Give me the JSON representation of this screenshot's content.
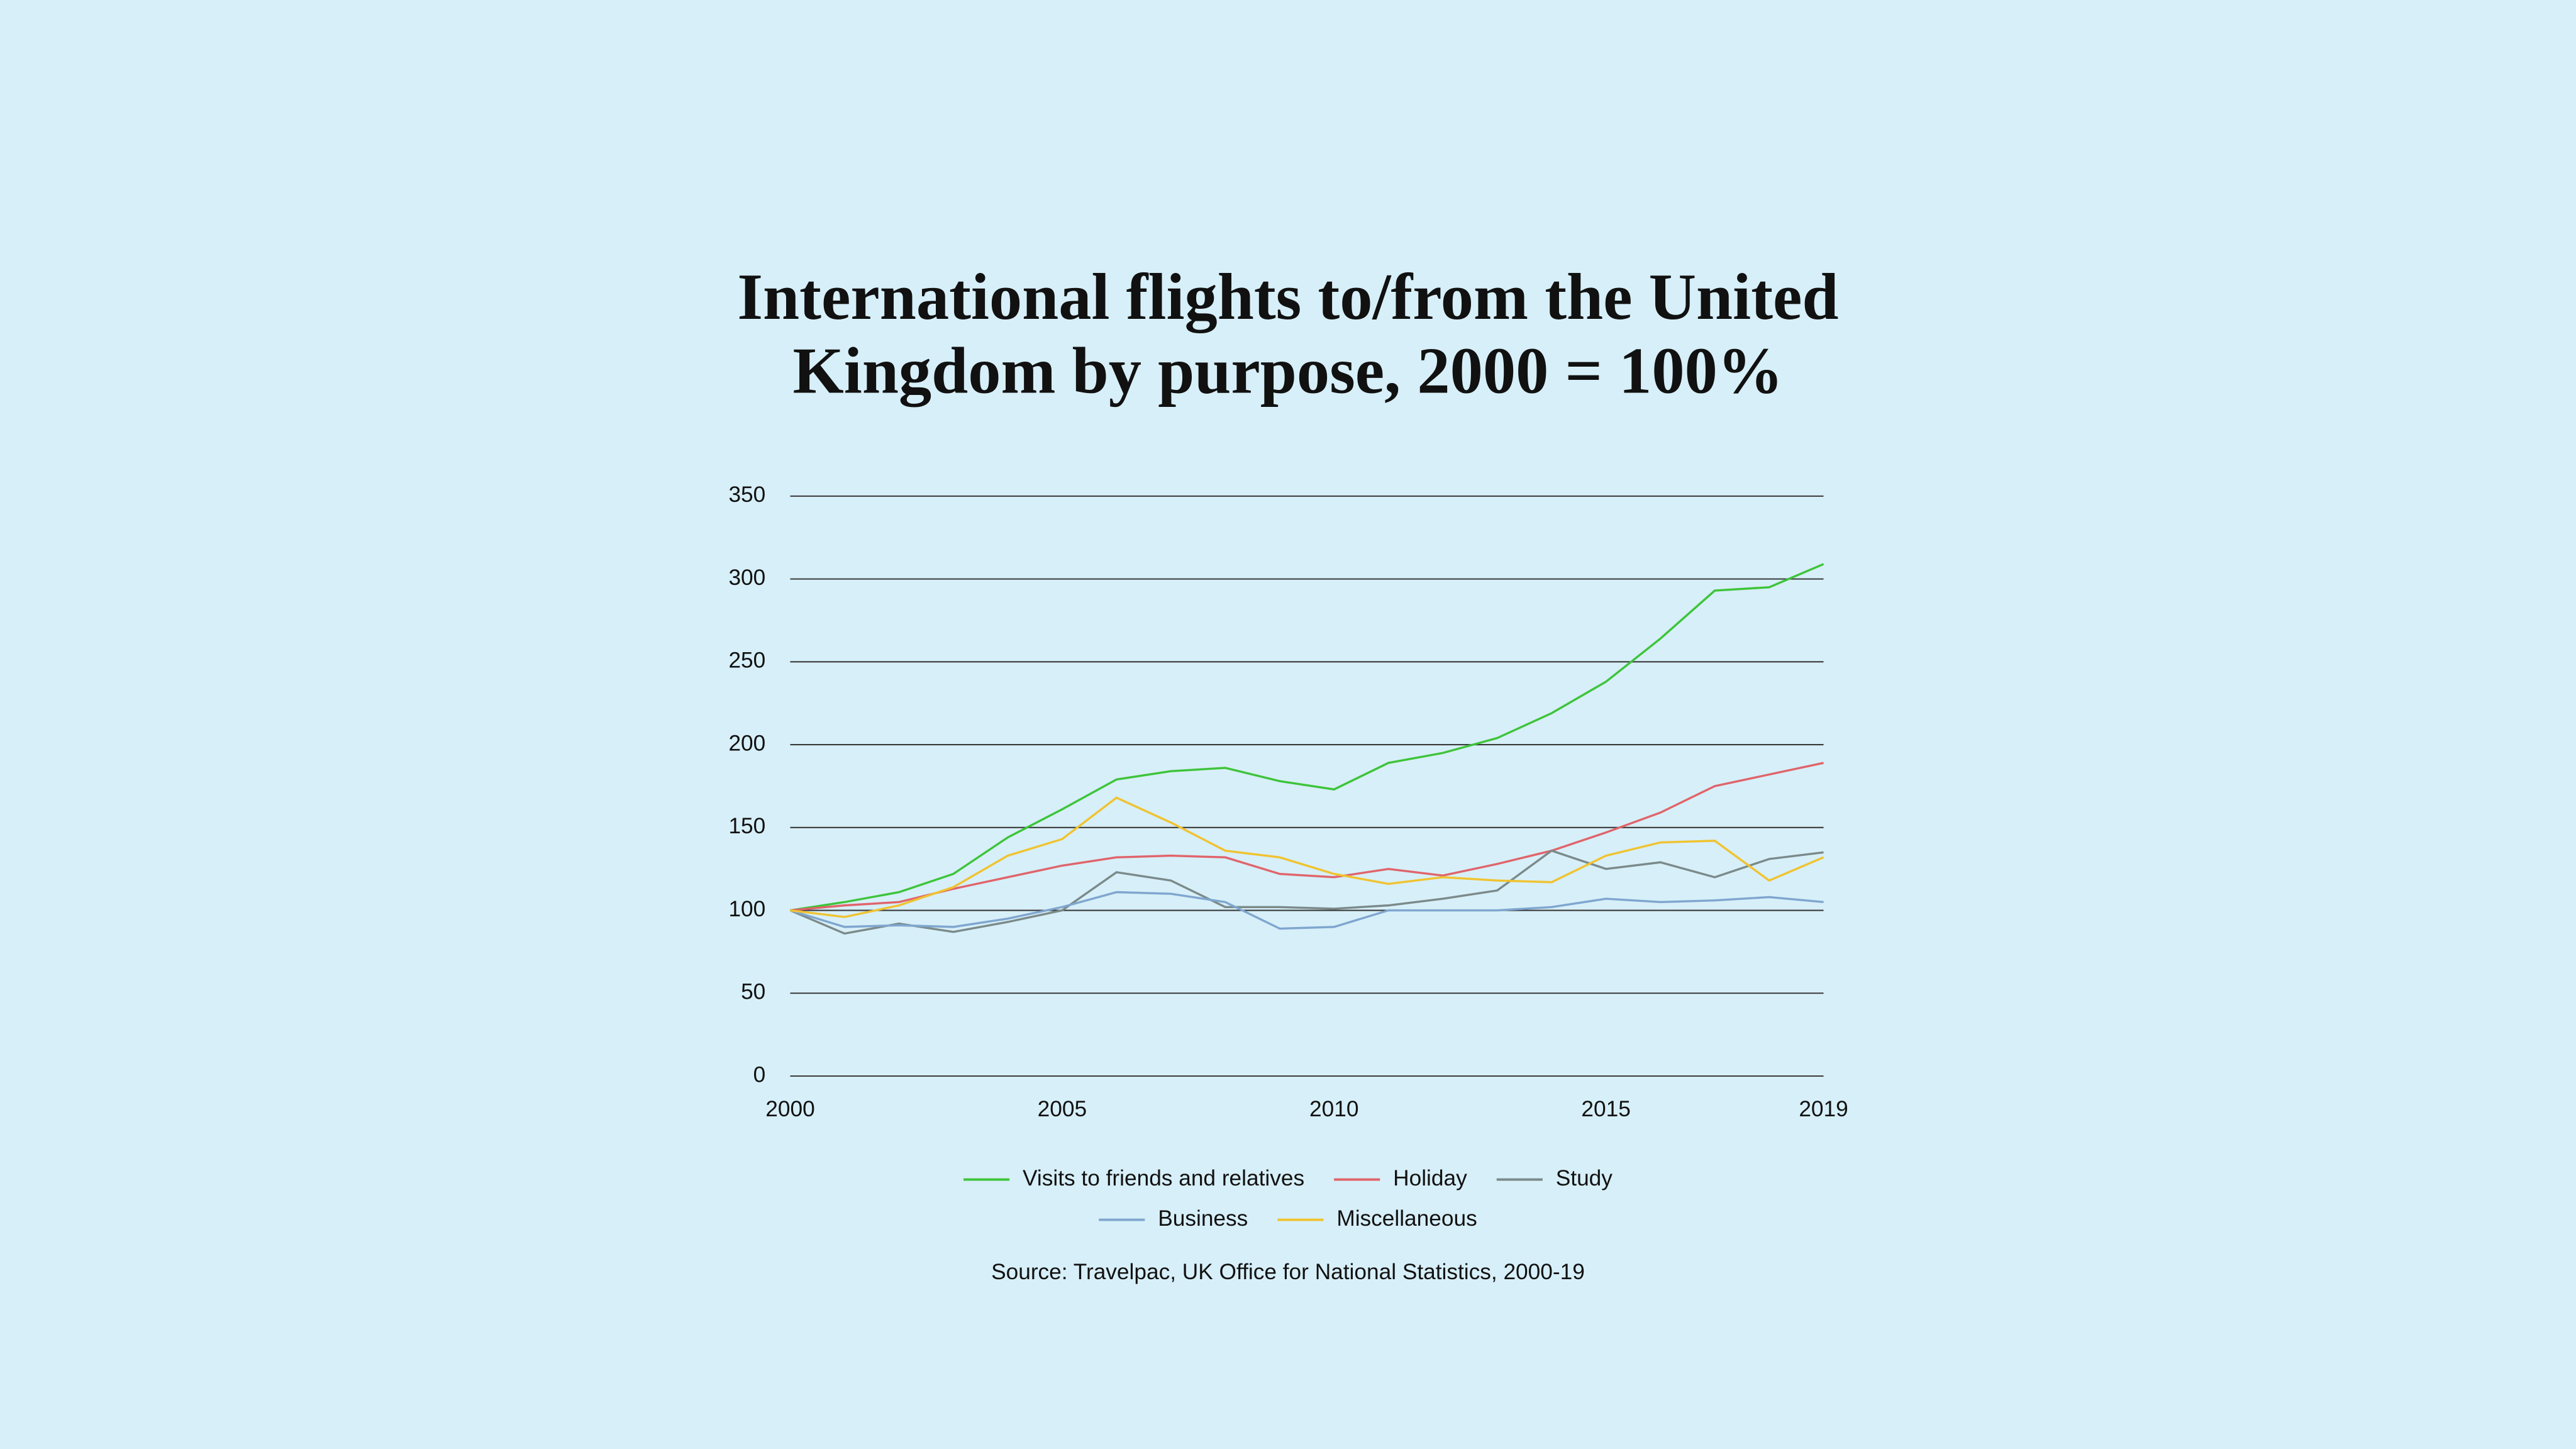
{
  "chart_data": {
    "type": "line",
    "title": "International flights to/from the United Kingdom by purpose, 2000 = 100%",
    "x": [
      2000,
      2001,
      2002,
      2003,
      2004,
      2005,
      2006,
      2007,
      2008,
      2009,
      2010,
      2011,
      2012,
      2013,
      2014,
      2015,
      2016,
      2017,
      2018,
      2019
    ],
    "series": [
      {
        "name": "Visits to friends and relatives",
        "color": "#3ec43a",
        "values": [
          100,
          105,
          111,
          122,
          144,
          161,
          179,
          184,
          186,
          178,
          173,
          189,
          195,
          204,
          219,
          238,
          264,
          293,
          295,
          309
        ]
      },
      {
        "name": "Holiday",
        "color": "#e0646b",
        "values": [
          100,
          103,
          105,
          113,
          120,
          127,
          132,
          133,
          132,
          122,
          120,
          125,
          121,
          128,
          136,
          147,
          159,
          175,
          182,
          189
        ]
      },
      {
        "name": "Study",
        "color": "#7b8a8a",
        "values": [
          100,
          86,
          92,
          87,
          93,
          100,
          123,
          118,
          102,
          102,
          101,
          103,
          107,
          112,
          136,
          125,
          129,
          120,
          131,
          135
        ]
      },
      {
        "name": "Business",
        "color": "#7fa6cf",
        "values": [
          100,
          90,
          91,
          90,
          95,
          102,
          111,
          110,
          105,
          89,
          90,
          100,
          100,
          100,
          102,
          107,
          105,
          106,
          108,
          105
        ]
      },
      {
        "name": "Miscellaneous",
        "color": "#f0c330",
        "values": [
          100,
          96,
          103,
          114,
          133,
          143,
          168,
          153,
          136,
          132,
          122,
          116,
          120,
          118,
          117,
          133,
          141,
          142,
          118,
          132
        ]
      }
    ],
    "xlim": [
      2000,
      2019
    ],
    "xticks": [
      2000,
      2005,
      2010,
      2015,
      2019
    ],
    "ylim": [
      0,
      350
    ],
    "yticks": [
      0,
      50,
      100,
      150,
      200,
      250,
      300,
      350
    ],
    "grid": true,
    "source": "Source: Travelpac, UK Office for National Statistics, 2000-19"
  }
}
